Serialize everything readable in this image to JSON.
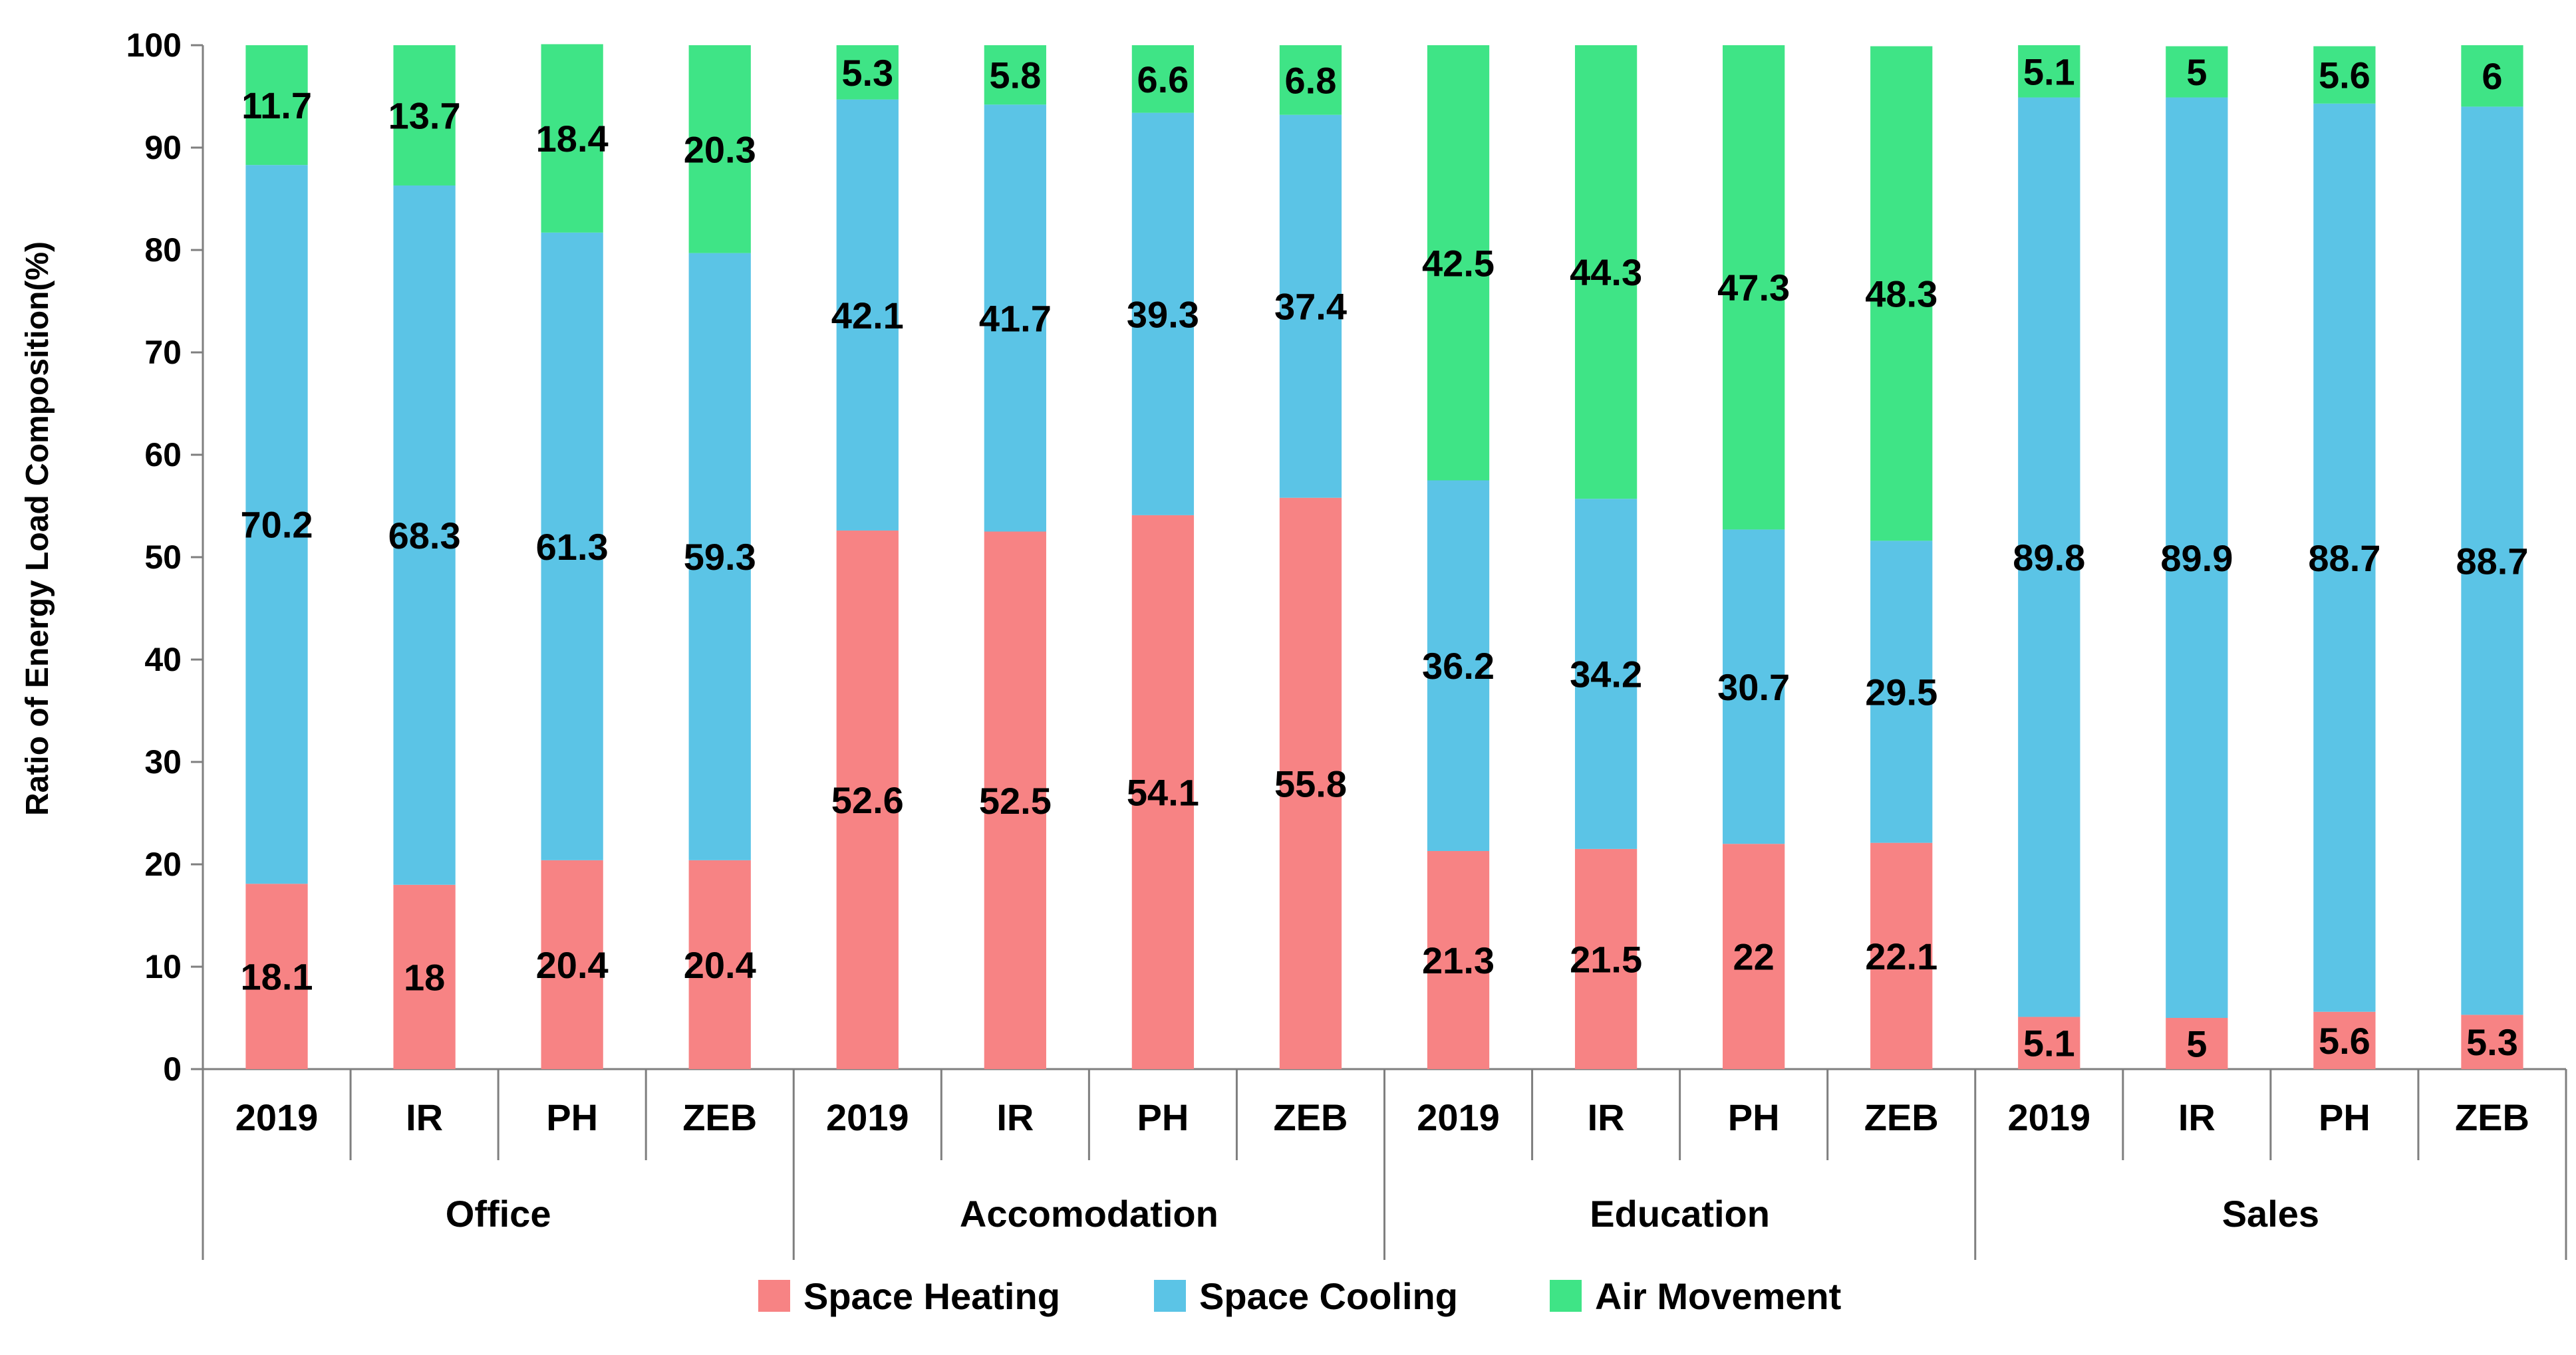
{
  "chart_data": {
    "type": "bar",
    "stacked": true,
    "ylabel": "Ratio of Energy Load Composition(%)",
    "xlabel": "",
    "ylim": [
      0,
      100
    ],
    "yticks": [
      0,
      10,
      20,
      30,
      40,
      50,
      60,
      70,
      80,
      90,
      100
    ],
    "legend_position": "bottom",
    "grid": false,
    "groups": [
      {
        "name": "Office",
        "categories": [
          "2019",
          "IR",
          "PH",
          "ZEB"
        ]
      },
      {
        "name": "Accomodation",
        "categories": [
          "2019",
          "IR",
          "PH",
          "ZEB"
        ]
      },
      {
        "name": "Education",
        "categories": [
          "2019",
          "IR",
          "PH",
          "ZEB"
        ]
      },
      {
        "name": "Sales",
        "categories": [
          "2019",
          "IR",
          "PH",
          "ZEB"
        ]
      }
    ],
    "series": [
      {
        "name": "Space Heating",
        "color": "#f78384",
        "values": [
          18.1,
          18,
          20.4,
          20.4,
          52.6,
          52.5,
          54.1,
          55.8,
          21.3,
          21.5,
          22,
          22.1,
          5.1,
          5,
          5.6,
          5.3
        ],
        "labels": [
          "18.1",
          "18",
          "20.4",
          "20.4",
          "52.6",
          "52.5",
          "54.1",
          "55.8",
          "21.3",
          "21.5",
          "22",
          "22.1",
          "5.1",
          "5",
          "5.6",
          "5.3"
        ]
      },
      {
        "name": "Space Cooling",
        "color": "#5bc4e6",
        "values": [
          70.2,
          68.3,
          61.3,
          59.3,
          42.1,
          41.7,
          39.3,
          37.4,
          36.2,
          34.2,
          30.7,
          29.5,
          89.8,
          89.9,
          88.7,
          88.7
        ],
        "labels": [
          "70.2",
          "68.3",
          "61.3",
          "59.3",
          "42.1",
          "41.7",
          "39.3",
          "37.4",
          "36.2",
          "34.2",
          "30.7",
          "29.5",
          "89.8",
          "89.9",
          "88.7",
          "88.7"
        ]
      },
      {
        "name": "Air Movement",
        "color": "#3fe486",
        "values": [
          11.7,
          13.7,
          18.4,
          20.3,
          5.3,
          5.8,
          6.6,
          6.8,
          42.5,
          44.3,
          47.3,
          48.3,
          5.1,
          5,
          5.6,
          6
        ],
        "labels": [
          "11.7",
          "13.7",
          "18.4",
          "20.3",
          "5.3",
          "5.8",
          "6.6",
          "6.8",
          "42.5",
          "44.3",
          "47.3",
          "48.3",
          "5.1",
          "5",
          "5.6",
          "6"
        ]
      }
    ]
  }
}
